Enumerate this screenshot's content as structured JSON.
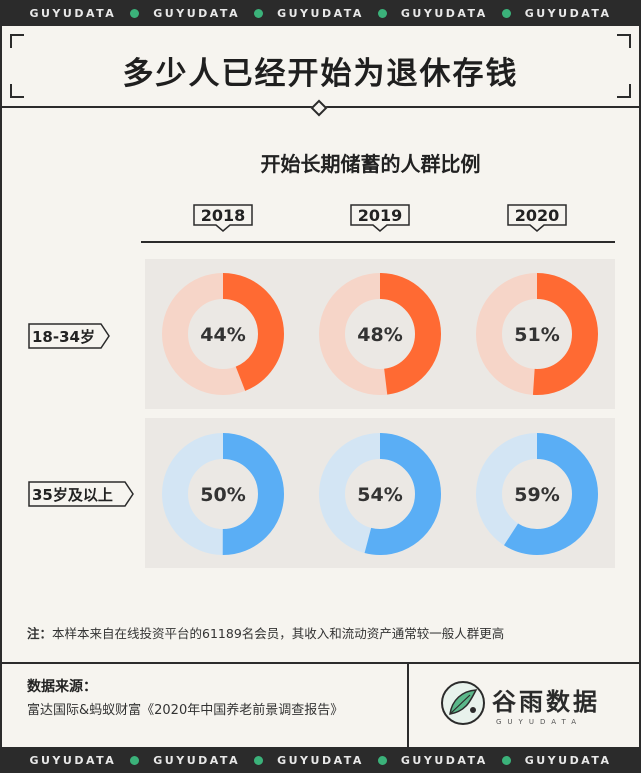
{
  "band": {
    "text": "GUYUDATA",
    "accent": "#3bb27a"
  },
  "title": "多少人已经开始为退休存钱",
  "subtitle": "开始长期储蓄的人群比例",
  "chart_data": {
    "type": "pie",
    "subtype": "donut",
    "title": "开始长期储蓄的人群比例",
    "categories": [
      "2018",
      "2019",
      "2020"
    ],
    "series": [
      {
        "name": "18-34岁",
        "values": [
          44,
          48,
          51
        ],
        "color": "#ff6a33",
        "track_color": "#f6d5c8"
      },
      {
        "name": "35岁及以上",
        "values": [
          50,
          54,
          59
        ],
        "color": "#5aaef5",
        "track_color": "#d3e5f4"
      }
    ],
    "value_suffix": "%"
  },
  "note": {
    "prefix": "注：",
    "text": "本样本来自在线投资平台的61189名会员，其收入和流动资产通常较一般人群更高"
  },
  "source": {
    "title": "数据来源：",
    "text": "富达国际&蚂蚁财富《2020年中国养老前景调查报告》"
  },
  "logo": {
    "name": "谷雨数据",
    "sub": "GUYUDATA"
  }
}
